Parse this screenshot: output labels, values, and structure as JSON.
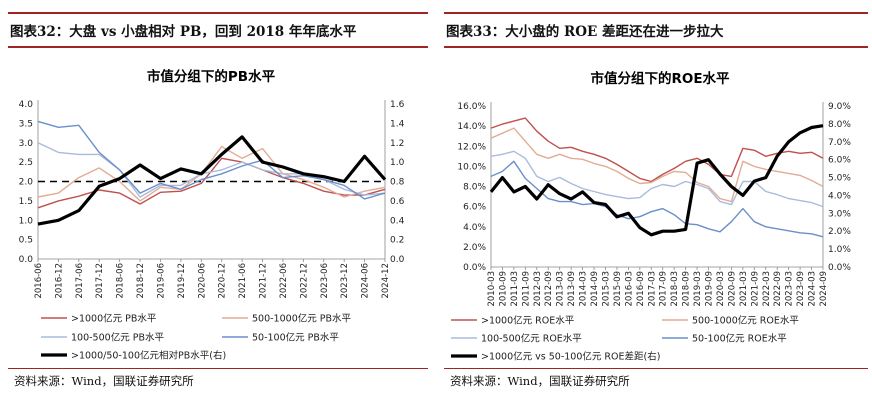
{
  "colors": {
    "rule": "#a12424",
    "s1": "#c0504d",
    "s2": "#e2ac94",
    "s3": "#a9bbdd",
    "s4": "#6b8fcb",
    "s5": "#000000"
  },
  "left": {
    "header": "图表32：大盘 vs 小盘相对 PB，回到 2018 年年底水平",
    "source": "资料来源：Wind，国联证券研究所"
  },
  "right": {
    "header": "图表33：大小盘的 ROE 差距还在进一步拉大",
    "source": "资料来源：Wind，国联证券研究所"
  },
  "chart_data": [
    {
      "type": "line",
      "title": "市值分组下的PB水平",
      "x": [
        "2016-06",
        "2016-12",
        "2017-06",
        "2017-12",
        "2018-06",
        "2018-12",
        "2019-06",
        "2019-12",
        "2020-06",
        "2020-12",
        "2021-06",
        "2021-12",
        "2022-06",
        "2022-12",
        "2023-06",
        "2023-12",
        "2024-06",
        "2024-12"
      ],
      "ylim_left": [
        0,
        4.0
      ],
      "yticks_left": [
        "0.0",
        "0.5",
        "1.0",
        "1.5",
        "2.0",
        "2.5",
        "3.0",
        "3.5",
        "4.0"
      ],
      "ylim_right": [
        0,
        1.6
      ],
      "yticks_right": [
        "0.0",
        "0.2",
        "0.4",
        "0.6",
        "0.8",
        "1.0",
        "1.2",
        "1.4",
        "1.6"
      ],
      "reference_line": {
        "axis": "right",
        "value": 0.8,
        "style": "dashed"
      },
      "series": [
        {
          "name": ">1000亿元 PB水平",
          "axis": "left",
          "values": [
            1.32,
            1.5,
            1.62,
            1.78,
            1.7,
            1.42,
            1.72,
            1.75,
            1.95,
            2.6,
            2.5,
            2.3,
            2.1,
            1.95,
            1.75,
            1.65,
            1.65,
            1.8
          ]
        },
        {
          "name": "500-1000亿元 PB水平",
          "axis": "left",
          "values": [
            1.6,
            1.7,
            2.1,
            2.35,
            2.0,
            1.5,
            1.85,
            1.8,
            2.2,
            2.9,
            2.6,
            2.85,
            2.2,
            2.05,
            1.85,
            1.6,
            1.75,
            1.85
          ]
        },
        {
          "name": "100-500亿元 PB水平",
          "axis": "left",
          "values": [
            3.0,
            2.75,
            2.7,
            2.7,
            2.3,
            1.6,
            1.9,
            1.9,
            2.2,
            2.3,
            2.5,
            2.3,
            2.2,
            2.2,
            2.05,
            1.8,
            1.65,
            1.7
          ]
        },
        {
          "name": "50-100亿元 PB水平",
          "axis": "left",
          "values": [
            3.55,
            3.4,
            3.45,
            2.75,
            2.3,
            1.7,
            1.95,
            1.8,
            2.05,
            2.2,
            2.4,
            2.55,
            2.1,
            2.15,
            2.05,
            1.9,
            1.55,
            1.7
          ]
        },
        {
          "name": ">1000/50-100亿元相对PB水平(右)",
          "axis": "right",
          "values": [
            0.36,
            0.4,
            0.5,
            0.75,
            0.83,
            0.97,
            0.83,
            0.93,
            0.88,
            1.08,
            1.26,
            1.0,
            0.95,
            0.88,
            0.85,
            0.8,
            1.06,
            0.82
          ]
        }
      ],
      "legend": [
        ">1000亿元 PB水平",
        "500-1000亿元 PB水平",
        "100-500亿元 PB水平",
        "50-100亿元 PB水平",
        ">1000/50-100亿元相对PB水平(右)"
      ]
    },
    {
      "type": "line",
      "title": "市值分组下的ROE水平",
      "x": [
        "2010-03",
        "2010-09",
        "2011-03",
        "2011-09",
        "2012-03",
        "2012-09",
        "2013-03",
        "2013-09",
        "2014-03",
        "2014-09",
        "2015-03",
        "2015-09",
        "2016-03",
        "2016-09",
        "2017-03",
        "2017-09",
        "2018-03",
        "2018-09",
        "2019-03",
        "2019-09",
        "2020-03",
        "2020-09",
        "2021-03",
        "2021-09",
        "2022-03",
        "2022-09",
        "2023-03",
        "2023-09",
        "2024-03",
        "2024-09"
      ],
      "ylim_left": [
        0,
        16
      ],
      "yticks_left": [
        "0.0%",
        "2.0%",
        "4.0%",
        "6.0%",
        "8.0%",
        "10.0%",
        "12.0%",
        "14.0%",
        "16.0%"
      ],
      "ylim_right": [
        0,
        9
      ],
      "yticks_right": [
        "0.0%",
        "1.0%",
        "2.0%",
        "3.0%",
        "4.0%",
        "5.0%",
        "6.0%",
        "7.0%",
        "8.0%",
        "9.0%"
      ],
      "series": [
        {
          "name": ">1000亿元 ROE水平",
          "axis": "left",
          "values": [
            13.8,
            14.2,
            14.5,
            14.8,
            13.5,
            12.5,
            11.8,
            11.9,
            11.5,
            11.2,
            10.8,
            10.2,
            9.5,
            8.8,
            8.5,
            9.2,
            9.8,
            10.5,
            10.8,
            10.2,
            9.2,
            9.0,
            11.8,
            11.6,
            11.0,
            11.3,
            11.5,
            11.3,
            11.4,
            10.8
          ]
        },
        {
          "name": "500-1000亿元 ROE水平",
          "axis": "left",
          "values": [
            12.8,
            13.3,
            13.8,
            12.5,
            11.2,
            10.8,
            11.2,
            10.8,
            10.7,
            10.3,
            10.0,
            9.5,
            8.8,
            8.3,
            8.4,
            9.0,
            9.5,
            9.4,
            8.4,
            8.0,
            6.8,
            6.5,
            10.5,
            10.0,
            9.7,
            9.5,
            9.3,
            9.1,
            8.6,
            8.0
          ]
        },
        {
          "name": "100-500亿元 ROE水平",
          "axis": "left",
          "values": [
            11.0,
            11.2,
            11.5,
            10.8,
            9.0,
            8.5,
            8.9,
            8.3,
            7.8,
            7.5,
            7.2,
            7.0,
            6.8,
            6.9,
            7.8,
            8.2,
            8.0,
            8.5,
            8.2,
            7.8,
            6.5,
            6.2,
            8.5,
            8.5,
            7.5,
            7.2,
            6.8,
            6.6,
            6.4,
            6.0
          ]
        },
        {
          "name": "50-100亿元 ROE水平",
          "axis": "left",
          "values": [
            9.0,
            9.5,
            10.5,
            8.8,
            7.8,
            6.8,
            6.5,
            6.5,
            6.2,
            6.3,
            6.0,
            5.2,
            4.8,
            5.0,
            5.5,
            5.8,
            5.2,
            4.3,
            4.2,
            3.8,
            3.5,
            4.5,
            5.8,
            4.5,
            4.0,
            3.8,
            3.6,
            3.4,
            3.3,
            3.0
          ]
        },
        {
          "name": ">1000亿元 vs 50-100亿元 ROE差距(右)",
          "axis": "right",
          "values": [
            4.2,
            5.0,
            4.2,
            4.5,
            3.8,
            4.6,
            4.1,
            3.8,
            4.2,
            3.6,
            3.5,
            2.8,
            3.0,
            2.2,
            1.8,
            2.0,
            2.0,
            2.1,
            5.8,
            6.0,
            5.2,
            4.5,
            4.0,
            4.8,
            5.0,
            6.2,
            7.0,
            7.5,
            7.8,
            7.9
          ]
        }
      ],
      "legend": [
        ">1000亿元 ROE水平",
        "500-1000亿元 ROE水平",
        "100-500亿元 ROE水平",
        "50-100亿元 ROE水平",
        ">1000亿元 vs 50-100亿元 ROE差距(右)"
      ]
    }
  ]
}
